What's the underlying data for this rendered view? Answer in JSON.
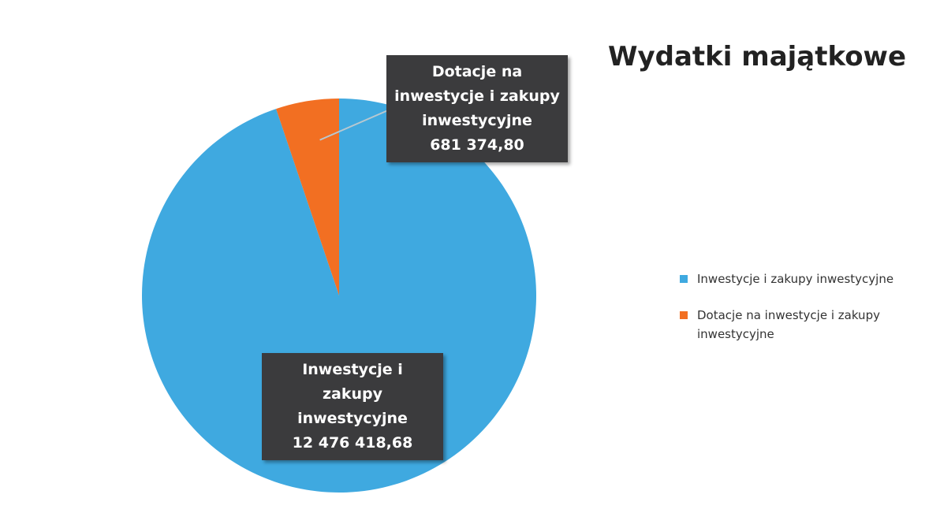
{
  "chart_data": {
    "type": "pie",
    "title": "Wydatki majątkowe",
    "categories": [
      "Inwestycje i zakupy inwestycyjne",
      "Dotacje na inwestycje i zakupy inwestycyjne"
    ],
    "values": [
      12476418.68,
      681374.8
    ],
    "value_labels": [
      "12 476 418,68",
      "681 374,80"
    ],
    "colors": [
      "#3fa9e0",
      "#f26f22"
    ],
    "legend": "right"
  }
}
